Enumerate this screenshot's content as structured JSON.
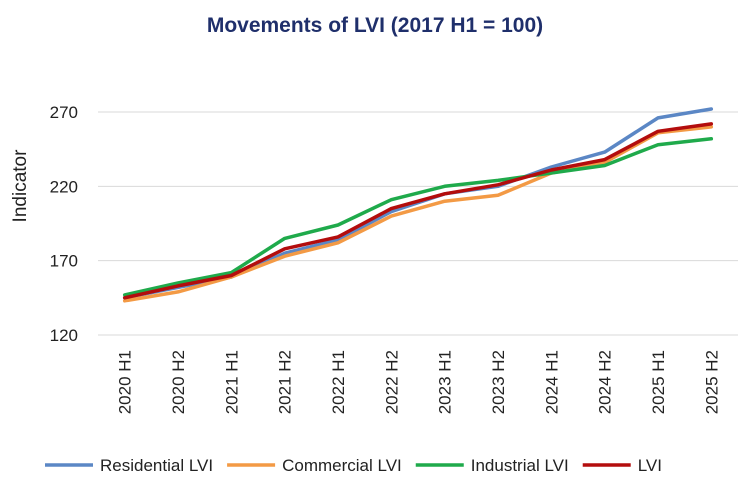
{
  "chart_data": {
    "type": "line",
    "title": "Movements of LVI (2017 H1 = 100)",
    "xlabel": "",
    "ylabel": "Indicator",
    "ylim": [
      120,
      280
    ],
    "yticks": [
      120,
      170,
      220,
      270
    ],
    "grid": true,
    "legend_position": "bottom",
    "categories": [
      "2020 H1",
      "2020 H2",
      "2021 H1",
      "2021 H2",
      "2022 H1",
      "2022 H2",
      "2023 H1",
      "2023 H2",
      "2024 H1",
      "2024 H2",
      "2025 H1",
      "2025 H2"
    ],
    "series": [
      {
        "name": "Residential LVI",
        "color": "#5b87c5",
        "values": [
          145,
          152,
          159,
          175,
          184,
          203,
          215,
          220,
          233,
          243,
          266,
          272
        ]
      },
      {
        "name": "Commercial LVI",
        "color": "#f39a45",
        "values": [
          143,
          149,
          159,
          173,
          182,
          200,
          210,
          214,
          229,
          236,
          256,
          260
        ]
      },
      {
        "name": "Industrial LVI",
        "color": "#1faa4b",
        "values": [
          147,
          155,
          162,
          185,
          194,
          211,
          220,
          224,
          229,
          234,
          248,
          252
        ]
      },
      {
        "name": "LVI",
        "color": "#b30d0d",
        "values": [
          145,
          153,
          160,
          178,
          186,
          205,
          215,
          221,
          231,
          238,
          257,
          262
        ]
      }
    ]
  }
}
